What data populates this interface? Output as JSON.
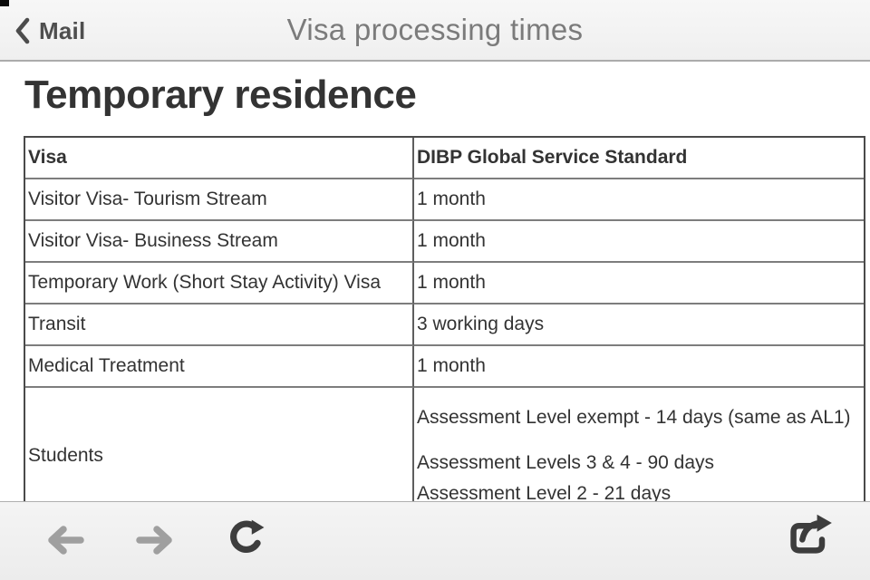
{
  "navbar": {
    "back_label": "Mail",
    "title": "Visa processing times"
  },
  "page": {
    "heading": "Temporary residence"
  },
  "table": {
    "headers": [
      "Visa",
      "DIBP Global Service Standard"
    ],
    "rows": [
      {
        "visa": "Visitor Visa- Tourism Stream",
        "standard": [
          [
            "1 month"
          ]
        ]
      },
      {
        "visa": "Visitor Visa- Business Stream",
        "standard": [
          [
            "1 month"
          ]
        ]
      },
      {
        "visa": "Temporary Work (Short Stay Activity) Visa",
        "standard": [
          [
            "1 month"
          ]
        ]
      },
      {
        "visa": "Transit",
        "standard": [
          [
            "3 working days"
          ]
        ]
      },
      {
        "visa": "Medical Treatment",
        "standard": [
          [
            "1 month"
          ]
        ]
      },
      {
        "visa": "Students",
        "standard": [
          [
            "Assessment Level exempt - 14 days (same as AL1)"
          ],
          [
            "Assessment Levels 3 & 4 - 90 days",
            "Assessment Level 2 - 21 days"
          ]
        ],
        "tall": true
      }
    ]
  },
  "toolbar": {
    "icons": [
      "back-arrow-icon",
      "forward-arrow-icon",
      "reload-icon",
      "share-icon"
    ]
  },
  "colors": {
    "navbar_bg": "#f4f4f4",
    "navbar_border": "#ababab",
    "nav_title_text": "#7b7b7b",
    "back_label_text": "#4e4e4e",
    "heading_text": "#333333",
    "table_outer_border": "#4a4a4a",
    "table_inner_border": "#7d7d7d",
    "table_text": "#333333",
    "toolbar_bg": "#f0f0f0",
    "disabled_icon": "#9f9f9f",
    "active_icon": "#3d3d3d"
  }
}
